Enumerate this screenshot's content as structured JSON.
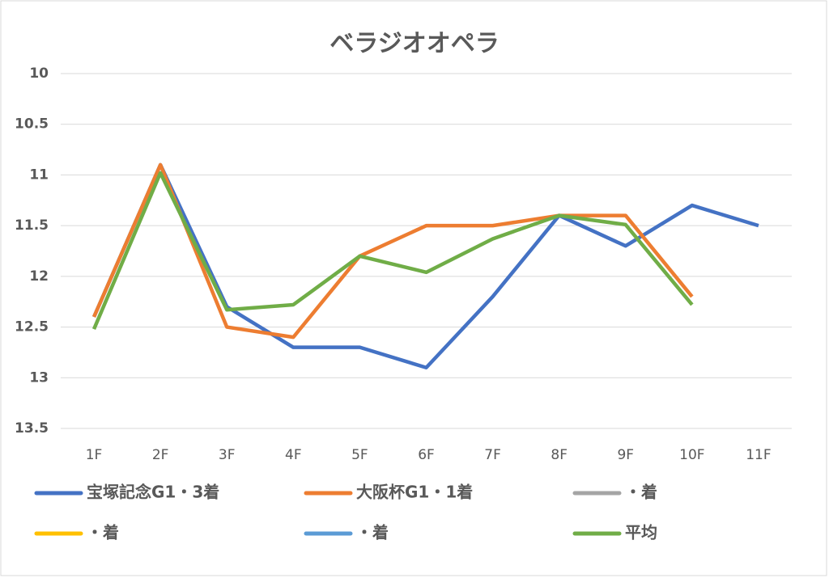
{
  "chart_data": {
    "type": "line",
    "title": "ベラジオオペラ",
    "categories": [
      "1F",
      "2F",
      "3F",
      "4F",
      "5F",
      "6F",
      "7F",
      "8F",
      "9F",
      "10F",
      "11F"
    ],
    "series": [
      {
        "name": "宝塚記念G1・3着",
        "color": "#4472c4",
        "values": [
          12.4,
          10.9,
          12.3,
          12.7,
          12.7,
          12.9,
          12.2,
          11.4,
          11.7,
          11.3,
          11.5
        ]
      },
      {
        "name": "大阪杯G1・1着",
        "color": "#ed7d31",
        "values": [
          12.4,
          10.9,
          12.5,
          12.6,
          11.8,
          11.5,
          11.5,
          11.4,
          11.4,
          12.2,
          null
        ]
      },
      {
        "name": "・着",
        "color": "#a5a5a5",
        "values": [
          null,
          null,
          null,
          null,
          null,
          null,
          null,
          null,
          null,
          null,
          null
        ]
      },
      {
        "name": "・着",
        "color": "#ffc000",
        "values": [
          null,
          null,
          null,
          null,
          null,
          null,
          null,
          null,
          null,
          null,
          null
        ]
      },
      {
        "name": "・着",
        "color": "#5b9bd5",
        "values": [
          null,
          null,
          null,
          null,
          null,
          null,
          null,
          null,
          null,
          null,
          null
        ]
      },
      {
        "name": "平均",
        "color": "#70ad47",
        "values": [
          12.52,
          10.98,
          12.33,
          12.28,
          11.8,
          11.96,
          11.63,
          11.4,
          11.49,
          12.28,
          null
        ]
      }
    ],
    "ylim": [
      10,
      13.5
    ],
    "y_inverted": true,
    "yticks": [
      10,
      10.5,
      11,
      11.5,
      12,
      12.5,
      13,
      13.5
    ],
    "grid": true,
    "legend": "bottom"
  }
}
